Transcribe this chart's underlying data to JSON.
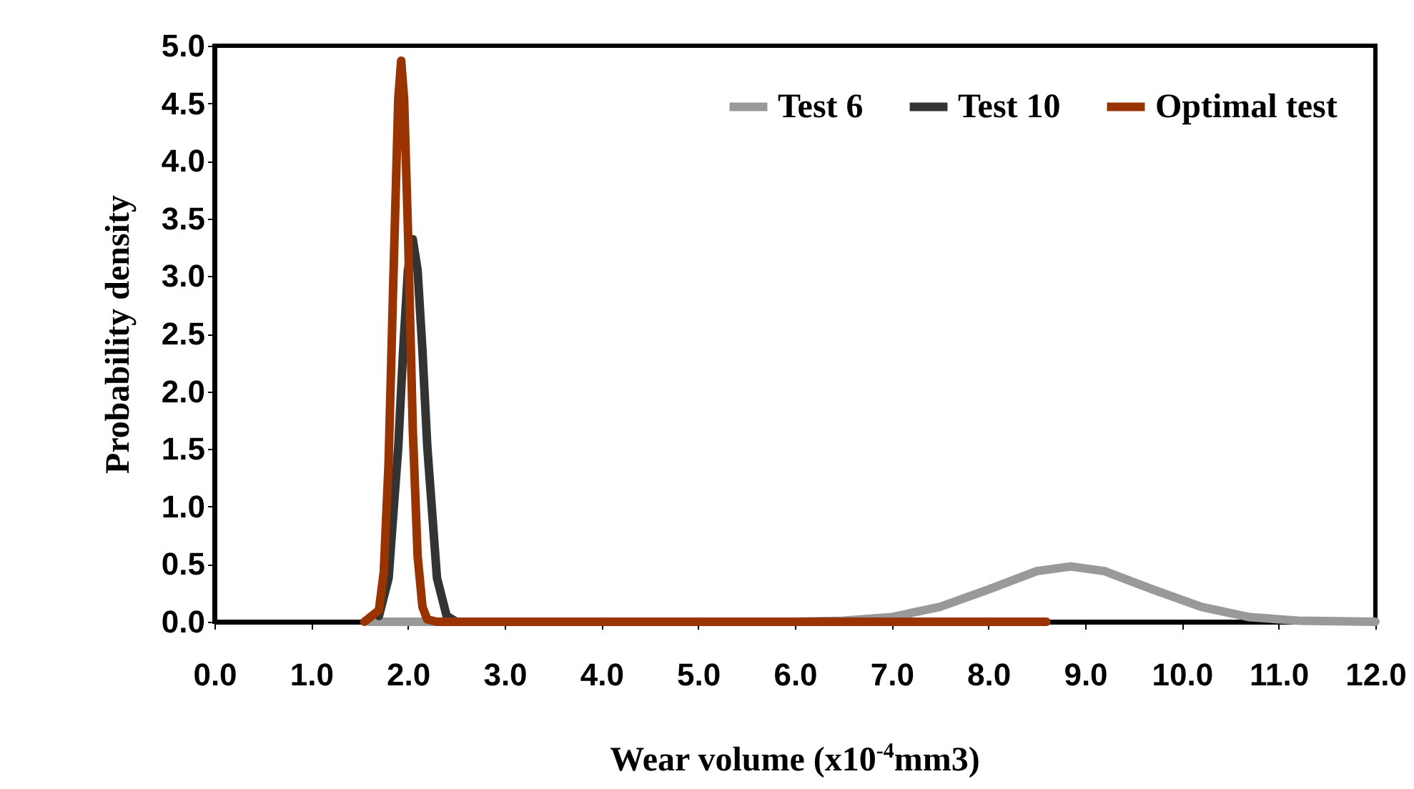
{
  "chart_data": {
    "type": "line",
    "xlabel": "Wear volume (x10$^{-4}$mm3)",
    "ylabel": "Probability density",
    "xlim": [
      0,
      12
    ],
    "xticks": [
      {
        "value": 0,
        "label": "0.0"
      },
      {
        "value": 1,
        "label": "1.0"
      },
      {
        "value": 2,
        "label": "2.0"
      },
      {
        "value": 3,
        "label": "3.0"
      },
      {
        "value": 4,
        "label": "4.0"
      },
      {
        "value": 5,
        "label": "5.0"
      },
      {
        "value": 6,
        "label": "6.0"
      },
      {
        "value": 7,
        "label": "7.0"
      },
      {
        "value": 8,
        "label": "8.0"
      },
      {
        "value": 9,
        "label": "9.0"
      },
      {
        "value": 10,
        "label": "10.0"
      },
      {
        "value": 11,
        "label": "11.0"
      },
      {
        "value": 12,
        "label": "12.0"
      }
    ],
    "ylim": [
      0,
      5
    ],
    "yticks": [
      {
        "value": 0,
        "label": "0.0"
      },
      {
        "value": 0.5,
        "label": "0.5"
      },
      {
        "value": 1,
        "label": "1.0"
      },
      {
        "value": 1.5,
        "label": "1.5"
      },
      {
        "value": 2,
        "label": "2.0"
      },
      {
        "value": 2.5,
        "label": "2.5"
      },
      {
        "value": 3,
        "label": "3.0"
      },
      {
        "value": 3.5,
        "label": "3.5"
      },
      {
        "value": 4,
        "label": "4.0"
      },
      {
        "value": 4.5,
        "label": "4.5"
      },
      {
        "value": 5,
        "label": "5.0"
      }
    ],
    "grid": false,
    "legend": "top right",
    "marker": "none",
    "line_style": "solid",
    "series": [
      {
        "name": "Test 6",
        "color": "#999999",
        "x": [
          1.6,
          6.0,
          6.5,
          7.0,
          7.5,
          8.0,
          8.5,
          8.85,
          9.2,
          9.7,
          10.2,
          10.7,
          11.2,
          12.0
        ],
        "values": [
          0,
          0,
          0.01,
          0.04,
          0.13,
          0.28,
          0.44,
          0.48,
          0.44,
          0.28,
          0.13,
          0.04,
          0.01,
          0
        ]
      },
      {
        "name": "Test 10",
        "color": "#333333",
        "x": [
          1.7,
          1.8,
          1.9,
          1.95,
          2.0,
          2.05,
          2.1,
          2.15,
          2.2,
          2.3,
          2.4,
          2.5
        ],
        "values": [
          0.05,
          0.38,
          1.52,
          2.35,
          3.05,
          3.32,
          3.05,
          2.35,
          1.52,
          0.38,
          0.05,
          0
        ]
      },
      {
        "name": "Optimal test",
        "color": "#993300",
        "x": [
          1.55,
          1.7,
          1.75,
          1.8,
          1.85,
          1.9,
          1.93,
          1.96,
          2.0,
          2.05,
          2.1,
          2.15,
          2.2,
          2.3,
          8.6
        ],
        "values": [
          0,
          0.1,
          0.43,
          1.38,
          3.0,
          4.54,
          4.87,
          4.54,
          3.4,
          1.67,
          0.57,
          0.13,
          0.02,
          0,
          0
        ]
      }
    ]
  }
}
